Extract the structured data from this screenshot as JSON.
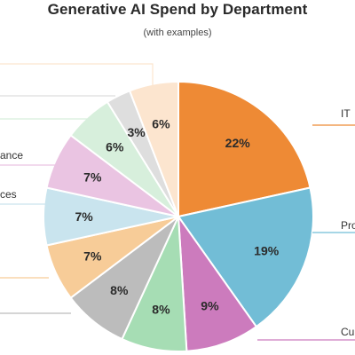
{
  "chart_data": {
    "type": "pie",
    "title": "Generative AI Spend by Department",
    "subtitle": "(with examples)",
    "slices": [
      {
        "label": "IT",
        "value": 22,
        "display": "22%",
        "color": "#ee8a35"
      },
      {
        "label": "Pro",
        "value": 19,
        "display": "19%",
        "color": "#72bdd6"
      },
      {
        "label": "Cu",
        "value": 9,
        "display": "9%",
        "color": "#cc7bbd"
      },
      {
        "label": "",
        "value": 8,
        "display": "8%",
        "color": "#a6ddb4"
      },
      {
        "label": "",
        "value": 8,
        "display": "8%",
        "color": "#bcbcbc"
      },
      {
        "label": "",
        "value": 7,
        "display": "7%",
        "color": "#f7cc98"
      },
      {
        "label": "ces",
        "value": 7,
        "display": "7%",
        "color": "#c9e4ee"
      },
      {
        "label": "ance",
        "value": 7,
        "display": "7%",
        "color": "#eac4e2"
      },
      {
        "label": "",
        "value": 6,
        "display": "6%",
        "color": "#d7efdc"
      },
      {
        "label": "",
        "value": 3,
        "display": "3%",
        "color": "#dedede"
      },
      {
        "label": "",
        "value": 6,
        "display": "6%",
        "color": "#fce5cf"
      }
    ]
  }
}
